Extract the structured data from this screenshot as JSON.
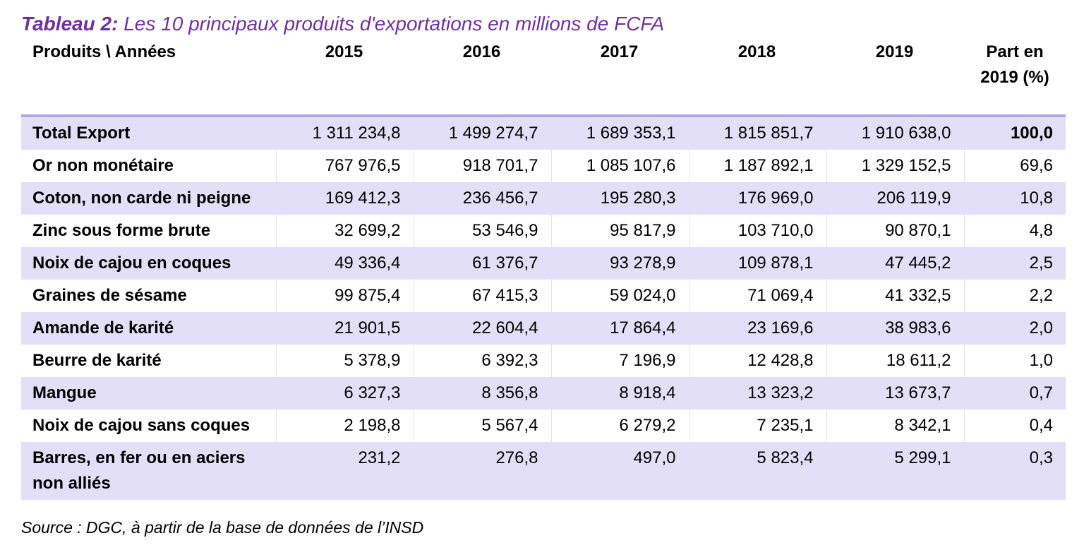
{
  "caption": {
    "label": "Tableau 2:",
    "text": " Les 10 principaux produits d'exportations en millions de FCFA",
    "color": "#7030a0"
  },
  "table": {
    "headers": {
      "product": "Produits \\ Années",
      "years": [
        "2015",
        "2016",
        "2017",
        "2018",
        "2019"
      ],
      "share": "Part en 2019 (%)"
    },
    "rows": [
      {
        "product": "Total Export",
        "values": [
          "1 311 234,8",
          "1 499 274,7",
          "1 689 353,1",
          "1 815 851,7",
          "1 910 638,0"
        ],
        "share": "100,0"
      },
      {
        "product": "Or non monétaire",
        "values": [
          "767 976,5",
          "918 701,7",
          "1 085 107,6",
          "1 187 892,1",
          "1 329 152,5"
        ],
        "share": "69,6"
      },
      {
        "product": "Coton, non carde ni peigne",
        "values": [
          "169 412,3",
          "236 456,7",
          "195 280,3",
          "176 969,0",
          "206 119,9"
        ],
        "share": "10,8"
      },
      {
        "product": "Zinc sous forme brute",
        "values": [
          "32 699,2",
          "53 546,9",
          "95 817,9",
          "103 710,0",
          "90 870,1"
        ],
        "share": "4,8"
      },
      {
        "product": "Noix de cajou en coques",
        "values": [
          "49 336,4",
          "61 376,7",
          "93 278,9",
          "109 878,1",
          "47 445,2"
        ],
        "share": "2,5"
      },
      {
        "product": "Graines de sésame",
        "values": [
          "99 875,4",
          "67 415,3",
          "59 024,0",
          "71 069,4",
          "41 332,5"
        ],
        "share": "2,2"
      },
      {
        "product": "Amande de karité",
        "values": [
          "21 901,5",
          "22 604,4",
          "17 864,4",
          "23 169,6",
          "38 983,6"
        ],
        "share": "2,0"
      },
      {
        "product": "Beurre de karité",
        "values": [
          "5 378,9",
          "6 392,3",
          "7 196,9",
          "12 428,8",
          "18 611,2"
        ],
        "share": "1,0"
      },
      {
        "product": "Mangue",
        "values": [
          "6 327,3",
          "8 356,8",
          "8 918,4",
          "13 323,2",
          "13 673,7"
        ],
        "share": "0,7"
      },
      {
        "product": "Noix de cajou sans coques",
        "values": [
          "2 198,8",
          "5 567,4",
          "6 279,2",
          "7 235,1",
          "8 342,1"
        ],
        "share": "0,4"
      },
      {
        "product": "Barres, en fer ou en aciers non alliés",
        "values": [
          "231,2",
          "276,8",
          "497,0",
          "5 823,4",
          "5 299,1"
        ],
        "share": "0,3"
      }
    ],
    "shade_color": "#e4dff8",
    "rule_color": "#b4a7e8"
  },
  "source": "Source : DGC, à partir de la base de données de l’INSD"
}
